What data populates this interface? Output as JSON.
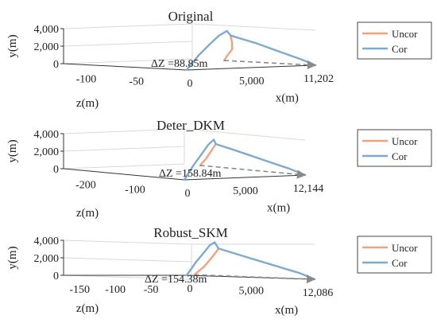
{
  "legend_labels": [
    "Uncor",
    "Cor"
  ],
  "colors": {
    "uncor": "#f0a27d",
    "cor": "#7faad0",
    "arrow": "#8a8a8a",
    "axis": "#333333",
    "grid": "#d9d9d9"
  },
  "chart_data": [
    {
      "type": "line",
      "title": "Original",
      "xlabel": "x(m)",
      "ylabel": "y(m)",
      "zlabel": "z(m)",
      "y_ticks": [
        "4,000",
        "2,000",
        "0"
      ],
      "z_ticks": [
        "-50",
        "-100"
      ],
      "x_ticks": [
        "0",
        "5,000",
        "11,202"
      ],
      "ylim": [
        0,
        4800
      ],
      "zlim": [
        -120,
        0
      ],
      "xlim": [
        0,
        11202
      ],
      "annotation": "ΔZ =88.85m",
      "legend": "right",
      "series": [
        {
          "name": "Uncor",
          "x": [
            7400,
            8400,
            9500,
            10500,
            11202
          ],
          "y": [
            4000,
            3000,
            1850,
            800,
            0
          ],
          "z": [
            -40,
            -50,
            -62,
            -78,
            -89
          ]
        },
        {
          "name": "Cor",
          "x": [
            0,
            1500,
            3000,
            4500,
            6000,
            7400,
            8500,
            9500,
            10500,
            11202
          ],
          "y": [
            0,
            1900,
            3300,
            4300,
            4800,
            4000,
            3000,
            1850,
            800,
            0
          ],
          "z": [
            0,
            -5,
            -11,
            -19,
            -28,
            -40,
            -28,
            -16,
            -6,
            0
          ]
        }
      ]
    },
    {
      "type": "line",
      "title": "Deter_DKM",
      "xlabel": "x(m)",
      "ylabel": "y(m)",
      "zlabel": "z(m)",
      "y_ticks": [
        "4,000",
        "2,000",
        "0"
      ],
      "z_ticks": [
        "-100",
        "-200"
      ],
      "x_ticks": [
        "0",
        "5,000",
        "12,144"
      ],
      "ylim": [
        0,
        4800
      ],
      "zlim": [
        -220,
        0
      ],
      "xlim": [
        0,
        12144
      ],
      "annotation": "ΔZ =158.84m",
      "legend": "right",
      "series": [
        {
          "name": "Uncor",
          "x": [
            7300,
            8000,
            8700,
            9300
          ],
          "y": [
            4000,
            3000,
            1600,
            500
          ],
          "z": [
            -75,
            -95,
            -118,
            -140
          ]
        },
        {
          "name": "Cor",
          "x": [
            0,
            1500,
            3000,
            4500,
            6000,
            7300,
            8600,
            10000,
            11300,
            12144
          ],
          "y": [
            0,
            1900,
            3300,
            4300,
            4800,
            4000,
            3000,
            1850,
            800,
            0
          ],
          "z": [
            0,
            -10,
            -22,
            -38,
            -55,
            -75,
            -55,
            -33,
            -12,
            0
          ]
        }
      ]
    },
    {
      "type": "line",
      "title": "Robust_SKM",
      "xlabel": "x(m)",
      "ylabel": "y(m)",
      "zlabel": "z(m)",
      "y_ticks": [
        "4,000",
        "2,000",
        "0"
      ],
      "z_ticks": [
        "-50",
        "-100",
        "-150"
      ],
      "x_ticks": [
        "0",
        "5,000",
        "12,086"
      ],
      "ylim": [
        0,
        4800
      ],
      "zlim": [
        -190,
        0
      ],
      "xlim": [
        0,
        12086
      ],
      "annotation": "ΔZ =154.38m",
      "legend": "right",
      "series": [
        {
          "name": "Uncor",
          "x": [
            7300,
            8000,
            8700,
            9300
          ],
          "y": [
            4000,
            3000,
            1600,
            500
          ],
          "z": [
            -70,
            -90,
            -115,
            -140
          ]
        },
        {
          "name": "Cor",
          "x": [
            0,
            1500,
            3000,
            4500,
            6000,
            7300,
            8600,
            10000,
            11300,
            12086
          ],
          "y": [
            0,
            1900,
            3300,
            4300,
            4800,
            4000,
            3000,
            1850,
            800,
            0
          ],
          "z": [
            0,
            -10,
            -22,
            -38,
            -55,
            -70,
            -52,
            -30,
            -10,
            0
          ]
        }
      ]
    }
  ]
}
